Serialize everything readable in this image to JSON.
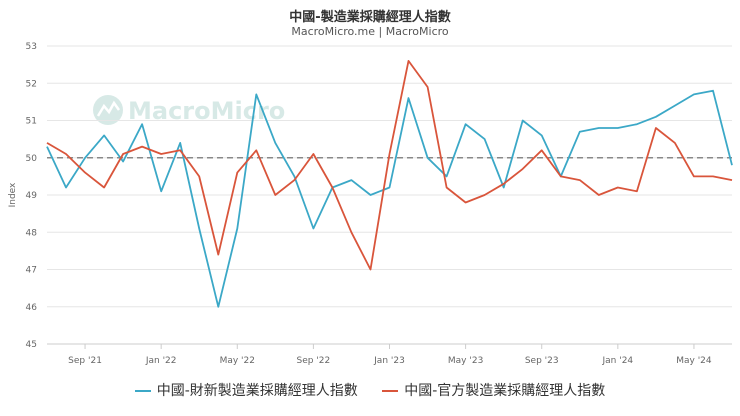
{
  "chart_data": {
    "type": "line",
    "title": "中國-製造業採購經理人指數",
    "subtitle": "MacroMicro.me | MacroMicro",
    "watermark": "MacroMicro",
    "ylabel": "Index",
    "ylim": [
      45,
      53
    ],
    "yticks": [
      45,
      46,
      47,
      48,
      49,
      50,
      51,
      52,
      53
    ],
    "reference_line": 50,
    "x": [
      "2021-07",
      "2021-08",
      "2021-09",
      "2021-10",
      "2021-11",
      "2021-12",
      "2022-01",
      "2022-02",
      "2022-03",
      "2022-04",
      "2022-05",
      "2022-06",
      "2022-07",
      "2022-08",
      "2022-09",
      "2022-10",
      "2022-11",
      "2022-12",
      "2023-01",
      "2023-02",
      "2023-03",
      "2023-04",
      "2023-05",
      "2023-06",
      "2023-07",
      "2023-08",
      "2023-09",
      "2023-10",
      "2023-11",
      "2023-12",
      "2024-01",
      "2024-02",
      "2024-03",
      "2024-04",
      "2024-05",
      "2024-06",
      "2024-07"
    ],
    "xtick_labels": [
      {
        "x": "2021-09",
        "label": "Sep '21"
      },
      {
        "x": "2022-01",
        "label": "Jan '22"
      },
      {
        "x": "2022-05",
        "label": "May '22"
      },
      {
        "x": "2022-09",
        "label": "Sep '22"
      },
      {
        "x": "2023-01",
        "label": "Jan '23"
      },
      {
        "x": "2023-05",
        "label": "May '23"
      },
      {
        "x": "2023-09",
        "label": "Sep '23"
      },
      {
        "x": "2024-01",
        "label": "Jan '24"
      },
      {
        "x": "2024-05",
        "label": "May '24"
      }
    ],
    "series": [
      {
        "name": "中國-財新製造業採購經理人指數",
        "color": "#3ba8c7",
        "values": [
          50.3,
          49.2,
          50.0,
          50.6,
          49.9,
          50.9,
          49.1,
          50.4,
          48.1,
          46.0,
          48.1,
          51.7,
          50.4,
          49.5,
          48.1,
          49.2,
          49.4,
          49.0,
          49.2,
          51.6,
          50.0,
          49.5,
          50.9,
          50.5,
          49.2,
          51.0,
          50.6,
          49.5,
          50.7,
          50.8,
          50.8,
          50.9,
          51.1,
          51.4,
          51.7,
          51.8,
          49.8
        ]
      },
      {
        "name": "中國-官方製造業採購經理人指數",
        "color": "#d9553b",
        "values": [
          50.4,
          50.1,
          49.6,
          49.2,
          50.1,
          50.3,
          50.1,
          50.2,
          49.5,
          47.4,
          49.6,
          50.2,
          49.0,
          49.4,
          50.1,
          49.2,
          48.0,
          47.0,
          50.1,
          52.6,
          51.9,
          49.2,
          48.8,
          49.0,
          49.3,
          49.7,
          50.2,
          49.5,
          49.4,
          49.0,
          49.2,
          49.1,
          50.8,
          50.4,
          49.5,
          49.5,
          49.4
        ]
      }
    ],
    "grid": "horizontal",
    "legend_position": "bottom"
  }
}
